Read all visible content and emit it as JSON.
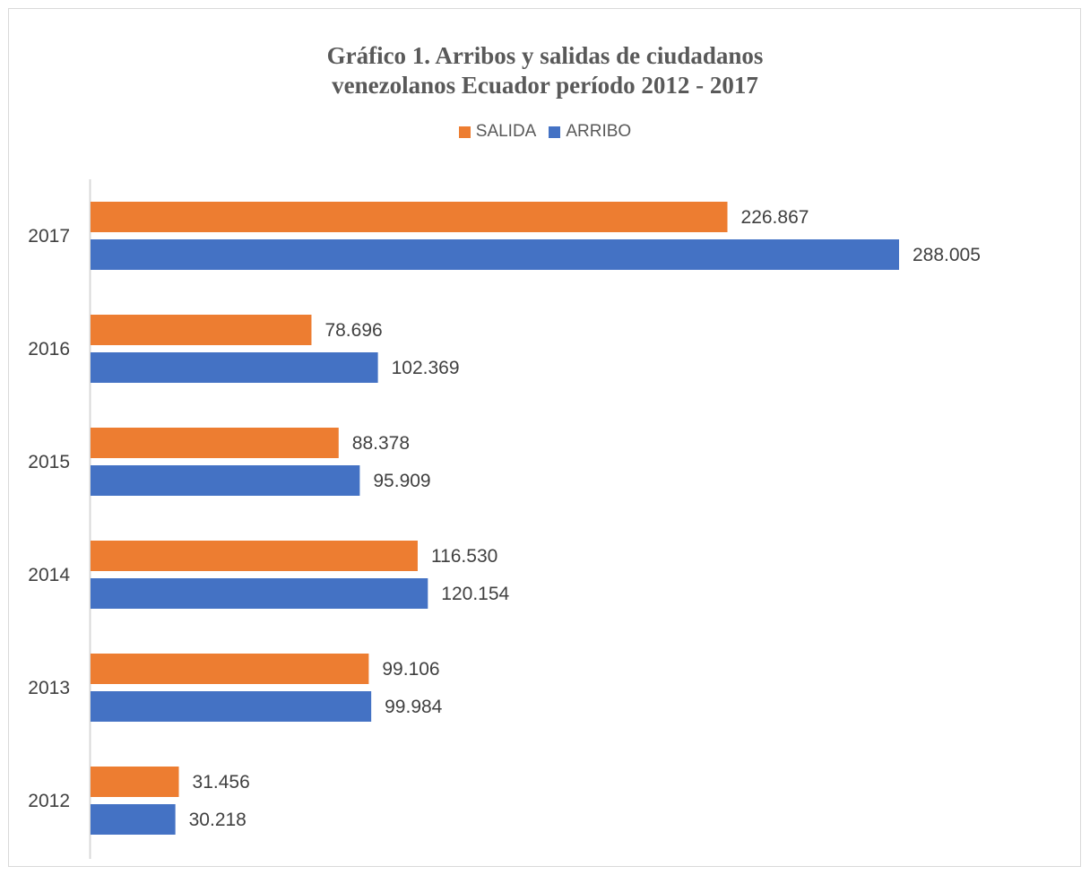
{
  "chart_data": {
    "type": "bar",
    "orientation": "horizontal",
    "title_lines": [
      "Gráfico 1. Arribos y salidas de ciudadanos",
      "venezolanos Ecuador período 2012 - 2017"
    ],
    "categories": [
      "2017",
      "2016",
      "2015",
      "2014",
      "2013",
      "2012"
    ],
    "series": [
      {
        "name": "SALIDA",
        "color": "#ED7D31",
        "values": [
          226867,
          78696,
          88378,
          116530,
          99106,
          31456
        ],
        "labels": [
          "226.867",
          "78.696",
          "88.378",
          "116.530",
          "99.106",
          "31.456"
        ]
      },
      {
        "name": "ARRIBO",
        "color": "#4472C4",
        "values": [
          288005,
          102369,
          95909,
          120154,
          99984,
          30218
        ],
        "labels": [
          "288.005",
          "102.369",
          "95.909",
          "120.154",
          "99.984",
          "30.218"
        ]
      }
    ],
    "xlim": [
      0,
      288005
    ],
    "grid": false,
    "legend_position": "top"
  }
}
